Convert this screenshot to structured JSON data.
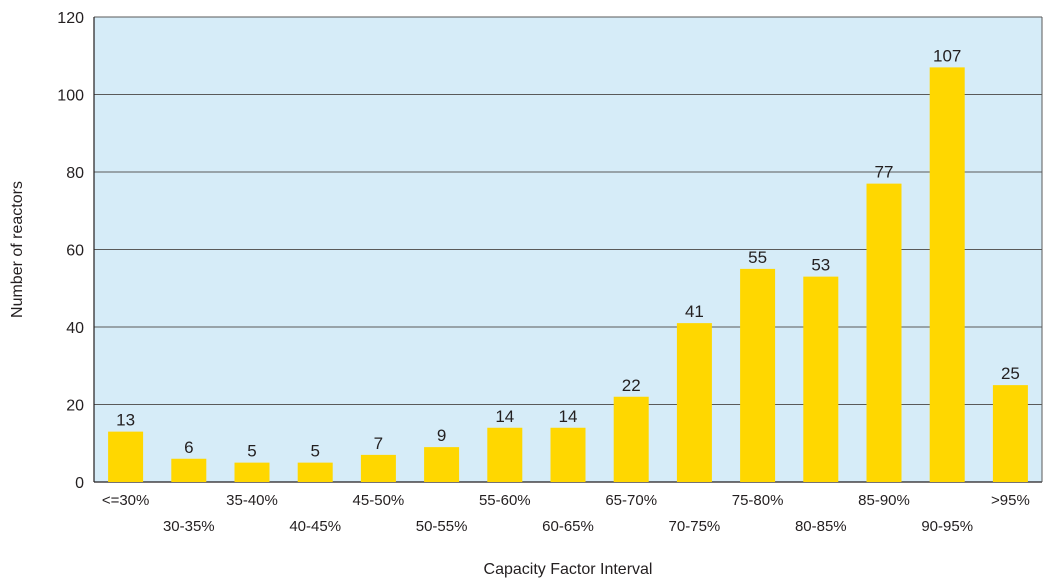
{
  "chart_data": {
    "type": "bar",
    "title": "",
    "xlabel": "Capacity Factor Interval",
    "ylabel": "Number of reactors",
    "categories": [
      "<=30%",
      "30-35%",
      "35-40%",
      "40-45%",
      "45-50%",
      "50-55%",
      "55-60%",
      "60-65%",
      "65-70%",
      "70-75%",
      "75-80%",
      "80-85%",
      "85-90%",
      "90-95%",
      ">95%"
    ],
    "values": [
      13,
      6,
      5,
      5,
      7,
      9,
      14,
      14,
      22,
      41,
      55,
      53,
      77,
      107,
      25
    ],
    "ylim": [
      0,
      120
    ],
    "yticks": [
      0,
      20,
      40,
      60,
      80,
      100,
      120
    ],
    "grid": true,
    "legend": "none",
    "colors": {
      "bar": "#ffd700",
      "plot_background": "#d6ecf8",
      "gridline": "#5a5a5a",
      "text": "#231f20"
    }
  }
}
